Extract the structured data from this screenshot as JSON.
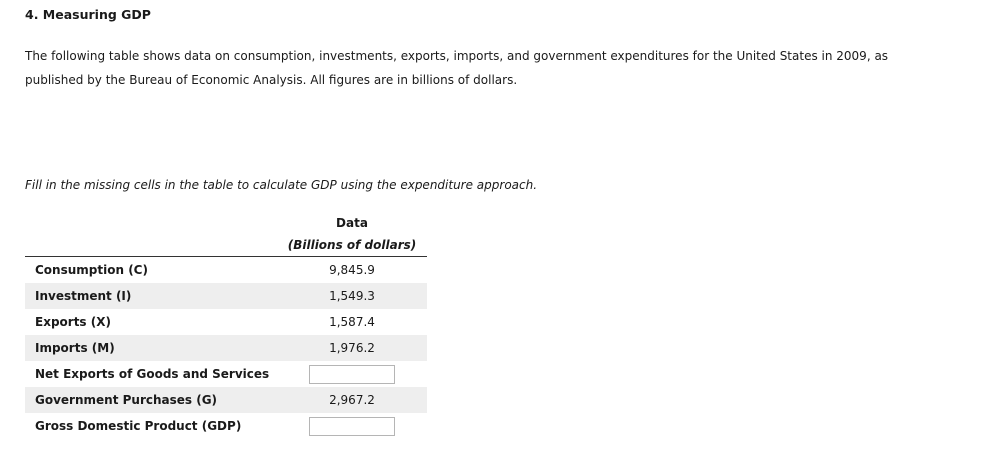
{
  "question": {
    "title": "4. Measuring GDP",
    "intro_line1": "The following table shows data on consumption, investments, exports, imports, and government expenditures for the United States in 2009, as",
    "intro_line2": "published by the Bureau of Economic Analysis. All figures are in billions of dollars.",
    "instruction": "Fill in the missing cells in the table to calculate GDP using the expenditure approach."
  },
  "table": {
    "header_line1": "Data",
    "header_line2": "(Billions of dollars)",
    "rows": [
      {
        "label": "Consumption (C)",
        "value": "9,845.9"
      },
      {
        "label": "Investment (I)",
        "value": "1,549.3"
      },
      {
        "label": "Exports (X)",
        "value": "1,587.4"
      },
      {
        "label": "Imports (M)",
        "value": "1,976.2"
      },
      {
        "label": "Net Exports of Goods and Services",
        "value": ""
      },
      {
        "label": "Government Purchases (G)",
        "value": "2,967.2"
      },
      {
        "label": "Gross Domestic Product (GDP)",
        "value": ""
      }
    ]
  }
}
